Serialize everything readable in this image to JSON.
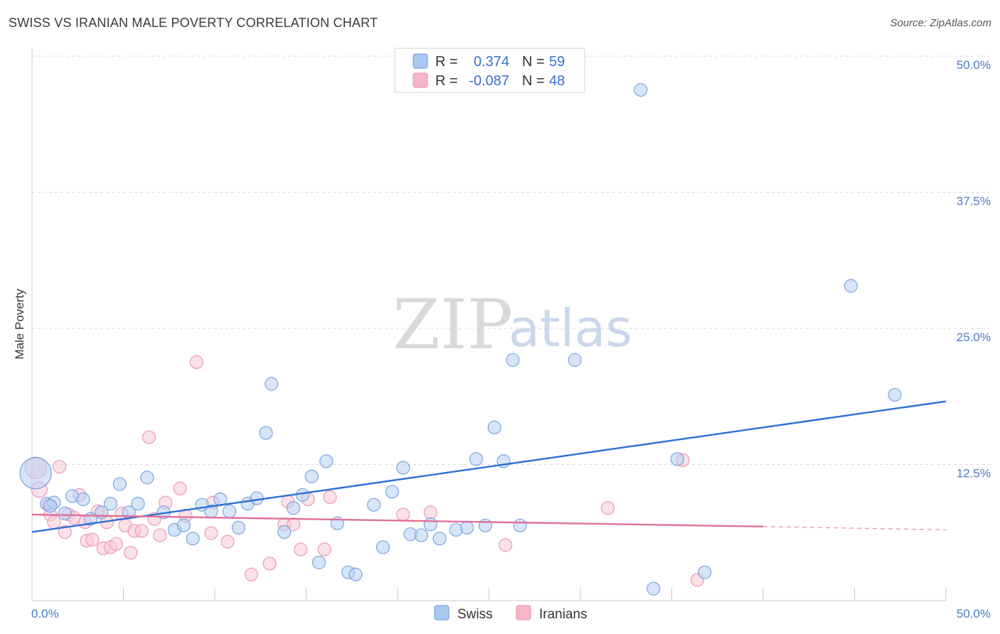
{
  "title": "SWISS VS IRANIAN MALE POVERTY CORRELATION CHART",
  "source": "Source: ZipAtlas.com",
  "watermark": {
    "part1": "ZIP",
    "part2": "atlas"
  },
  "legend": {
    "r_label": "R =",
    "n_label": "N =",
    "rows": [
      {
        "r": "0.374",
        "n": "59",
        "color": "#a8c8f0"
      },
      {
        "r": "-0.087",
        "n": "48",
        "color": "#f6b6c8"
      }
    ]
  },
  "colors": {
    "swiss_fill": "#b6d0f2",
    "swiss_stroke": "#7aa6e0",
    "swiss_line": "#2f6fd6",
    "iran_fill": "#f8c8d6",
    "iran_stroke": "#ee99b4",
    "iran_line": "#e0709a",
    "grid": "#d8d8d8",
    "axis_label": "#4a7cc9"
  },
  "chart_data": {
    "type": "scatter",
    "title": "SWISS VS IRANIAN MALE POVERTY CORRELATION CHART",
    "ylabel": "Male Poverty",
    "xlabel": "",
    "xlim": [
      0,
      50
    ],
    "ylim": [
      0,
      50
    ],
    "x_tick_labels": [
      "0.0%",
      "50.0%"
    ],
    "y_ticks": [
      12.5,
      25.0,
      37.5,
      50.0
    ],
    "y_tick_labels": [
      "12.5%",
      "25.0%",
      "37.5%",
      "50.0%"
    ],
    "grid": "horizontal dashed",
    "legend_position": "top-center and bottom",
    "series": [
      {
        "name": "Swiss",
        "r": 0.374,
        "n": 59,
        "trend": {
          "x": [
            0,
            50
          ],
          "y": [
            6.3,
            18.3
          ]
        },
        "points": [
          [
            0.2,
            11.7
          ],
          [
            0.8,
            8.9
          ],
          [
            1.2,
            9.0
          ],
          [
            1.8,
            8.0
          ],
          [
            2.2,
            9.6
          ],
          [
            2.8,
            9.3
          ],
          [
            3.2,
            7.5
          ],
          [
            3.8,
            8.1
          ],
          [
            4.3,
            8.9
          ],
          [
            4.8,
            10.7
          ],
          [
            5.3,
            8.1
          ],
          [
            5.8,
            8.9
          ],
          [
            6.3,
            11.3
          ],
          [
            7.2,
            8.1
          ],
          [
            7.8,
            6.5
          ],
          [
            8.3,
            6.9
          ],
          [
            8.8,
            5.7
          ],
          [
            9.3,
            8.8
          ],
          [
            9.8,
            8.2
          ],
          [
            10.3,
            9.3
          ],
          [
            10.8,
            8.2
          ],
          [
            11.3,
            6.7
          ],
          [
            11.8,
            8.9
          ],
          [
            12.3,
            9.4
          ],
          [
            12.8,
            15.4
          ],
          [
            13.1,
            19.9
          ],
          [
            13.8,
            6.3
          ],
          [
            14.3,
            8.5
          ],
          [
            14.8,
            9.7
          ],
          [
            15.3,
            11.4
          ],
          [
            15.7,
            3.5
          ],
          [
            16.1,
            12.8
          ],
          [
            16.7,
            7.1
          ],
          [
            17.3,
            2.6
          ],
          [
            17.7,
            2.4
          ],
          [
            18.7,
            8.8
          ],
          [
            19.2,
            4.9
          ],
          [
            19.7,
            10.0
          ],
          [
            20.3,
            12.2
          ],
          [
            20.7,
            6.1
          ],
          [
            21.3,
            6.0
          ],
          [
            21.8,
            7.0
          ],
          [
            22.3,
            5.7
          ],
          [
            23.2,
            6.5
          ],
          [
            23.8,
            6.7
          ],
          [
            24.3,
            13.0
          ],
          [
            24.8,
            6.9
          ],
          [
            25.3,
            15.9
          ],
          [
            25.8,
            12.8
          ],
          [
            26.3,
            22.1
          ],
          [
            26.7,
            6.9
          ],
          [
            29.7,
            22.1
          ],
          [
            33.3,
            46.9
          ],
          [
            34.0,
            1.1
          ],
          [
            35.3,
            13.0
          ],
          [
            36.8,
            2.6
          ],
          [
            44.8,
            28.9
          ],
          [
            47.2,
            18.9
          ],
          [
            1.0,
            8.7
          ]
        ]
      },
      {
        "name": "Iranians",
        "r": -0.087,
        "n": 48,
        "trend": {
          "x": [
            0,
            40
          ],
          "y": [
            7.9,
            6.8
          ]
        },
        "trend_dashed": {
          "x": [
            40,
            50
          ],
          "y": [
            6.8,
            6.5
          ]
        },
        "points": [
          [
            0.2,
            12.2
          ],
          [
            0.4,
            10.2
          ],
          [
            0.9,
            8.8
          ],
          [
            1.0,
            7.9
          ],
          [
            1.2,
            7.2
          ],
          [
            1.5,
            12.3
          ],
          [
            1.8,
            6.3
          ],
          [
            2.0,
            7.9
          ],
          [
            2.3,
            7.6
          ],
          [
            2.6,
            9.7
          ],
          [
            2.9,
            7.2
          ],
          [
            3.0,
            5.5
          ],
          [
            3.3,
            5.6
          ],
          [
            3.6,
            8.2
          ],
          [
            3.9,
            4.8
          ],
          [
            4.1,
            7.2
          ],
          [
            4.3,
            4.9
          ],
          [
            4.6,
            5.2
          ],
          [
            4.9,
            8.0
          ],
          [
            5.1,
            6.9
          ],
          [
            5.4,
            4.4
          ],
          [
            5.6,
            6.4
          ],
          [
            6.0,
            6.4
          ],
          [
            6.4,
            15.0
          ],
          [
            6.7,
            7.5
          ],
          [
            7.0,
            6.0
          ],
          [
            7.3,
            9.0
          ],
          [
            8.1,
            10.3
          ],
          [
            8.4,
            7.8
          ],
          [
            9.0,
            21.9
          ],
          [
            9.8,
            6.2
          ],
          [
            9.9,
            9.0
          ],
          [
            10.7,
            5.4
          ],
          [
            12.0,
            2.4
          ],
          [
            13.0,
            3.4
          ],
          [
            13.8,
            7.0
          ],
          [
            14.0,
            9.1
          ],
          [
            14.3,
            7.0
          ],
          [
            14.7,
            4.7
          ],
          [
            15.1,
            9.3
          ],
          [
            16.0,
            4.7
          ],
          [
            16.3,
            9.5
          ],
          [
            20.3,
            7.9
          ],
          [
            21.8,
            8.1
          ],
          [
            25.9,
            5.1
          ],
          [
            31.5,
            8.5
          ],
          [
            35.6,
            12.9
          ],
          [
            36.4,
            1.9
          ]
        ]
      }
    ]
  },
  "bottom_legend": [
    {
      "label": "Swiss",
      "color": "#a8c8f0"
    },
    {
      "label": "Iranians",
      "color": "#f6b6c8"
    }
  ]
}
